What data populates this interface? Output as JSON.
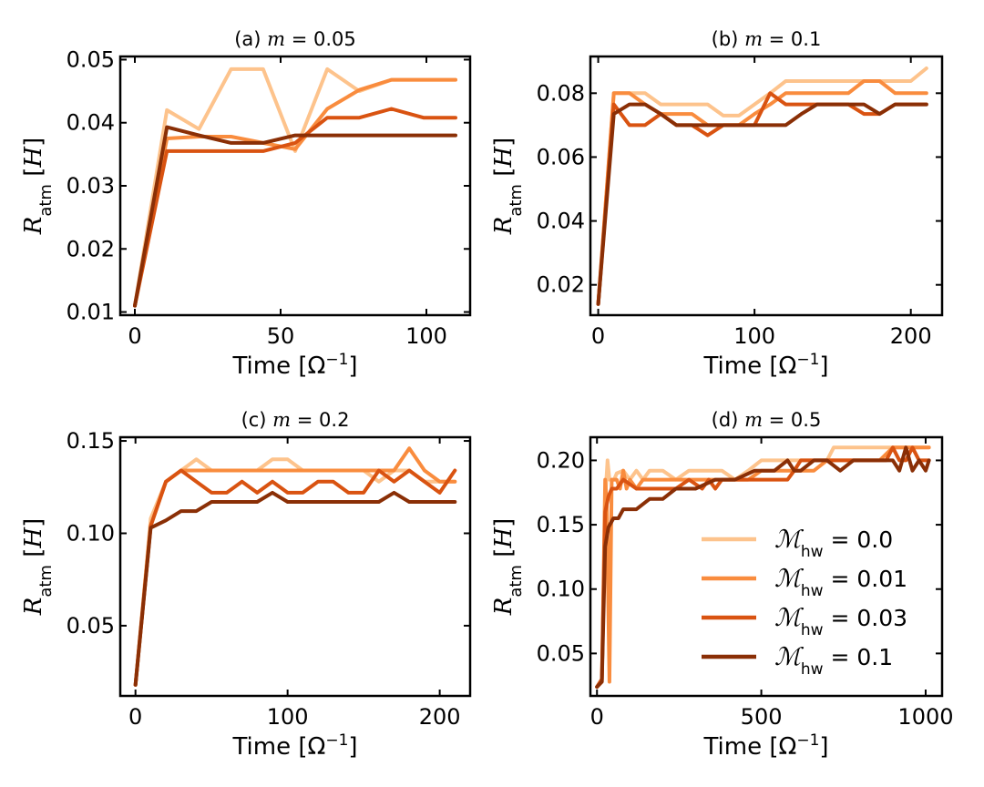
{
  "colors": [
    "#fdc38c",
    "#f98c3e",
    "#d95311",
    "#8a2f06"
  ],
  "legend": {
    "entries": [
      {
        "symbol": "ℳ",
        "sub": "hw",
        "value": "= 0.0"
      },
      {
        "symbol": "ℳ",
        "sub": "hw",
        "value": "= 0.01"
      },
      {
        "symbol": "ℳ",
        "sub": "hw",
        "value": "= 0.03"
      },
      {
        "symbol": "ℳ",
        "sub": "hw",
        "value": "= 0.1"
      }
    ]
  },
  "chart_data": [
    {
      "type": "line",
      "title_prefix": "(a) ",
      "title_var": "m",
      "title_value": " = 0.05",
      "xlabel": "Time [Ω",
      "xlabel_sup": "−1",
      "xlabel_end": "]",
      "ylabel_main": "R",
      "ylabel_sub": "atm",
      "ylabel_unit": " [",
      "ylabel_unit_var": "H",
      "ylabel_end": "]",
      "xlim": [
        -5,
        115
      ],
      "ylim": [
        0.0095,
        0.0505
      ],
      "xticks": [
        0,
        50,
        100
      ],
      "xtick_labels": [
        "0",
        "50",
        "100"
      ],
      "yticks": [
        0.01,
        0.02,
        0.03,
        0.04,
        0.05
      ],
      "ytick_labels": [
        "0.01",
        "0.02",
        "0.03",
        "0.04",
        "0.05"
      ],
      "series": [
        {
          "x": [
            0,
            11,
            22,
            33,
            44,
            55,
            66,
            77,
            88,
            99,
            110
          ],
          "y": [
            0.011,
            0.042,
            0.039,
            0.0485,
            0.0485,
            0.0355,
            0.0485,
            0.045,
            0.0468,
            0.0468,
            0.0468
          ]
        },
        {
          "x": [
            0,
            11,
            22,
            33,
            44,
            55,
            66,
            77,
            88,
            99,
            110
          ],
          "y": [
            0.011,
            0.0375,
            0.0378,
            0.0378,
            0.0368,
            0.0358,
            0.0422,
            0.0452,
            0.0468,
            0.0468,
            0.0468
          ]
        },
        {
          "x": [
            0,
            11,
            22,
            33,
            44,
            55,
            66,
            77,
            88,
            99,
            110
          ],
          "y": [
            0.011,
            0.0355,
            0.0355,
            0.0355,
            0.0355,
            0.0368,
            0.0408,
            0.0408,
            0.0422,
            0.0408,
            0.0408
          ]
        },
        {
          "x": [
            0,
            11,
            22,
            33,
            44,
            55,
            66,
            77,
            88,
            99,
            110
          ],
          "y": [
            0.011,
            0.0393,
            0.038,
            0.0368,
            0.0368,
            0.038,
            0.038,
            0.038,
            0.038,
            0.038,
            0.038
          ]
        }
      ]
    },
    {
      "type": "line",
      "title_prefix": "(b) ",
      "title_var": "m",
      "title_value": " = 0.1",
      "xlabel": "Time [Ω",
      "xlabel_sup": "−1",
      "xlabel_end": "]",
      "ylabel_main": "R",
      "ylabel_sub": "atm",
      "ylabel_unit": " [",
      "ylabel_unit_var": "H",
      "ylabel_end": "]",
      "xlim": [
        -5,
        220
      ],
      "ylim": [
        0.0105,
        0.0915
      ],
      "xticks": [
        0,
        100,
        200
      ],
      "xtick_labels": [
        "0",
        "100",
        "200"
      ],
      "yticks": [
        0.02,
        0.04,
        0.06,
        0.08
      ],
      "ytick_labels": [
        "0.02",
        "0.04",
        "0.06",
        "0.08"
      ],
      "series": [
        {
          "x": [
            0,
            10,
            20,
            30,
            40,
            50,
            60,
            70,
            80,
            90,
            100,
            110,
            120,
            130,
            140,
            150,
            160,
            170,
            180,
            190,
            200,
            210
          ],
          "y": [
            0.014,
            0.08,
            0.08,
            0.08,
            0.0765,
            0.0765,
            0.0765,
            0.0765,
            0.073,
            0.073,
            0.0765,
            0.08,
            0.0838,
            0.0838,
            0.0838,
            0.0838,
            0.0838,
            0.0838,
            0.0838,
            0.0838,
            0.0838,
            0.0878
          ]
        },
        {
          "x": [
            0,
            10,
            20,
            30,
            40,
            50,
            60,
            70,
            80,
            90,
            100,
            110,
            120,
            130,
            140,
            150,
            160,
            170,
            180,
            190,
            200,
            210
          ],
          "y": [
            0.014,
            0.08,
            0.08,
            0.0765,
            0.0735,
            0.0735,
            0.0735,
            0.07,
            0.07,
            0.07,
            0.0735,
            0.0765,
            0.08,
            0.08,
            0.08,
            0.08,
            0.08,
            0.0838,
            0.0838,
            0.08,
            0.08,
            0.08
          ]
        },
        {
          "x": [
            0,
            10,
            20,
            30,
            40,
            50,
            60,
            70,
            80,
            90,
            100,
            110,
            120,
            130,
            140,
            150,
            160,
            170,
            180,
            190,
            200,
            210
          ],
          "y": [
            0.014,
            0.0765,
            0.07,
            0.07,
            0.0735,
            0.07,
            0.07,
            0.0668,
            0.07,
            0.07,
            0.07,
            0.08,
            0.0765,
            0.0765,
            0.0765,
            0.0765,
            0.0765,
            0.0735,
            0.0735,
            0.0765,
            0.0765,
            0.0765
          ]
        },
        {
          "x": [
            0,
            10,
            20,
            30,
            40,
            50,
            60,
            70,
            80,
            90,
            100,
            110,
            120,
            130,
            140,
            150,
            160,
            170,
            180,
            190,
            200,
            210
          ],
          "y": [
            0.014,
            0.0735,
            0.0765,
            0.0765,
            0.0735,
            0.07,
            0.07,
            0.07,
            0.07,
            0.07,
            0.07,
            0.07,
            0.07,
            0.0735,
            0.0765,
            0.0765,
            0.0765,
            0.0765,
            0.0735,
            0.0765,
            0.0765,
            0.0765
          ]
        }
      ]
    },
    {
      "type": "line",
      "title_prefix": "(c) ",
      "title_var": "m",
      "title_value": " = 0.2",
      "xlabel": "Time [Ω",
      "xlabel_sup": "−1",
      "xlabel_end": "]",
      "ylabel_main": "R",
      "ylabel_sub": "atm",
      "ylabel_unit": " [",
      "ylabel_unit_var": "H",
      "ylabel_end": "]",
      "xlim": [
        -10,
        220
      ],
      "ylim": [
        0.012,
        0.152
      ],
      "xticks": [
        0,
        100,
        200
      ],
      "xtick_labels": [
        "0",
        "100",
        "200"
      ],
      "yticks": [
        0.05,
        0.1,
        0.15
      ],
      "ytick_labels": [
        "0.05",
        "0.10",
        "0.15"
      ],
      "series": [
        {
          "x": [
            0,
            10,
            20,
            30,
            40,
            50,
            60,
            70,
            80,
            90,
            100,
            110,
            120,
            130,
            140,
            150,
            160,
            170,
            180,
            190,
            200,
            210
          ],
          "y": [
            0.018,
            0.108,
            0.128,
            0.134,
            0.14,
            0.134,
            0.134,
            0.134,
            0.134,
            0.14,
            0.14,
            0.134,
            0.134,
            0.134,
            0.134,
            0.134,
            0.128,
            0.134,
            0.134,
            0.128,
            0.128,
            0.128
          ]
        },
        {
          "x": [
            0,
            10,
            20,
            30,
            40,
            50,
            60,
            70,
            80,
            90,
            100,
            110,
            120,
            130,
            140,
            150,
            160,
            170,
            180,
            190,
            200,
            210
          ],
          "y": [
            0.018,
            0.104,
            0.128,
            0.134,
            0.134,
            0.134,
            0.134,
            0.134,
            0.134,
            0.134,
            0.134,
            0.134,
            0.134,
            0.134,
            0.134,
            0.134,
            0.134,
            0.134,
            0.146,
            0.134,
            0.128,
            0.128
          ]
        },
        {
          "x": [
            0,
            10,
            20,
            30,
            40,
            50,
            60,
            70,
            80,
            90,
            100,
            110,
            120,
            130,
            140,
            150,
            160,
            170,
            180,
            190,
            200,
            210
          ],
          "y": [
            0.018,
            0.104,
            0.128,
            0.134,
            0.128,
            0.122,
            0.122,
            0.128,
            0.122,
            0.128,
            0.122,
            0.122,
            0.128,
            0.128,
            0.122,
            0.122,
            0.134,
            0.128,
            0.134,
            0.128,
            0.122,
            0.134
          ]
        },
        {
          "x": [
            0,
            10,
            20,
            30,
            40,
            50,
            60,
            70,
            80,
            90,
            100,
            110,
            120,
            130,
            140,
            150,
            160,
            170,
            180,
            190,
            200,
            210
          ],
          "y": [
            0.018,
            0.103,
            0.107,
            0.112,
            0.112,
            0.117,
            0.117,
            0.117,
            0.117,
            0.122,
            0.117,
            0.117,
            0.117,
            0.117,
            0.117,
            0.117,
            0.117,
            0.122,
            0.117,
            0.117,
            0.117,
            0.117
          ]
        }
      ]
    },
    {
      "type": "line",
      "title_prefix": "(d) ",
      "title_var": "m",
      "title_value": " = 0.5",
      "xlabel": "Time [Ω",
      "xlabel_sup": "−1",
      "xlabel_end": "]",
      "ylabel_main": "R",
      "ylabel_sub": "atm",
      "ylabel_unit": " [",
      "ylabel_unit_var": "H",
      "ylabel_end": "]",
      "xlim": [
        -20,
        1050
      ],
      "ylim": [
        0.017,
        0.218
      ],
      "xticks": [
        0,
        500,
        1000
      ],
      "xtick_labels": [
        "0",
        "500",
        "1000"
      ],
      "yticks": [
        0.05,
        0.1,
        0.15,
        0.2
      ],
      "ytick_labels": [
        "0.05",
        "0.10",
        "0.15",
        "0.20"
      ],
      "legend_position": "lower-right",
      "series": [
        {
          "x": [
            0,
            15,
            25,
            32,
            38,
            44,
            52,
            60,
            80,
            100,
            120,
            140,
            160,
            200,
            240,
            280,
            300,
            340,
            380,
            420,
            460,
            500,
            540,
            580,
            620,
            660,
            700,
            720,
            760,
            800,
            860,
            900,
            940,
            980,
            1010
          ],
          "y": [
            0.024,
            0.03,
            0.17,
            0.2,
            0.185,
            0.185,
            0.185,
            0.19,
            0.192,
            0.185,
            0.192,
            0.185,
            0.192,
            0.192,
            0.185,
            0.192,
            0.192,
            0.192,
            0.192,
            0.185,
            0.192,
            0.2,
            0.2,
            0.2,
            0.2,
            0.2,
            0.2,
            0.21,
            0.21,
            0.21,
            0.21,
            0.21,
            0.21,
            0.21,
            0.21
          ]
        },
        {
          "x": [
            0,
            15,
            25,
            30,
            38,
            45,
            52,
            60,
            70,
            80,
            90,
            100,
            120,
            140,
            160,
            200,
            240,
            280,
            300,
            340,
            380,
            420,
            460,
            500,
            540,
            580,
            620,
            660,
            700,
            760,
            800,
            860,
            900,
            940,
            980,
            1010
          ],
          "y": [
            0.024,
            0.028,
            0.185,
            0.165,
            0.028,
            0.185,
            0.185,
            0.185,
            0.178,
            0.192,
            0.178,
            0.185,
            0.178,
            0.185,
            0.185,
            0.185,
            0.185,
            0.185,
            0.185,
            0.185,
            0.185,
            0.185,
            0.185,
            0.192,
            0.192,
            0.192,
            0.192,
            0.192,
            0.2,
            0.2,
            0.2,
            0.2,
            0.21,
            0.21,
            0.21,
            0.21
          ]
        },
        {
          "x": [
            0,
            15,
            25,
            35,
            45,
            60,
            80,
            120,
            160,
            200,
            240,
            280,
            320,
            340,
            360,
            380,
            400,
            420,
            440,
            460,
            500,
            540,
            580,
            600,
            620,
            660,
            700,
            740,
            780,
            820,
            860,
            880,
            900,
            920,
            940,
            960,
            980,
            1010
          ],
          "y": [
            0.024,
            0.03,
            0.16,
            0.172,
            0.178,
            0.178,
            0.185,
            0.178,
            0.178,
            0.178,
            0.178,
            0.185,
            0.178,
            0.185,
            0.178,
            0.185,
            0.185,
            0.185,
            0.185,
            0.185,
            0.185,
            0.185,
            0.185,
            0.192,
            0.2,
            0.2,
            0.2,
            0.2,
            0.2,
            0.2,
            0.2,
            0.2,
            0.21,
            0.2,
            0.2,
            0.21,
            0.2,
            0.2
          ]
        },
        {
          "x": [
            0,
            15,
            25,
            35,
            50,
            65,
            80,
            120,
            160,
            200,
            240,
            300,
            360,
            420,
            480,
            540,
            580,
            600,
            620,
            660,
            700,
            740,
            780,
            820,
            860,
            900,
            920,
            940,
            960,
            980,
            1000,
            1010
          ],
          "y": [
            0.024,
            0.028,
            0.133,
            0.148,
            0.155,
            0.155,
            0.162,
            0.162,
            0.17,
            0.17,
            0.178,
            0.178,
            0.185,
            0.185,
            0.192,
            0.192,
            0.2,
            0.192,
            0.192,
            0.2,
            0.2,
            0.192,
            0.2,
            0.2,
            0.2,
            0.2,
            0.192,
            0.21,
            0.192,
            0.2,
            0.192,
            0.2
          ]
        }
      ]
    }
  ]
}
